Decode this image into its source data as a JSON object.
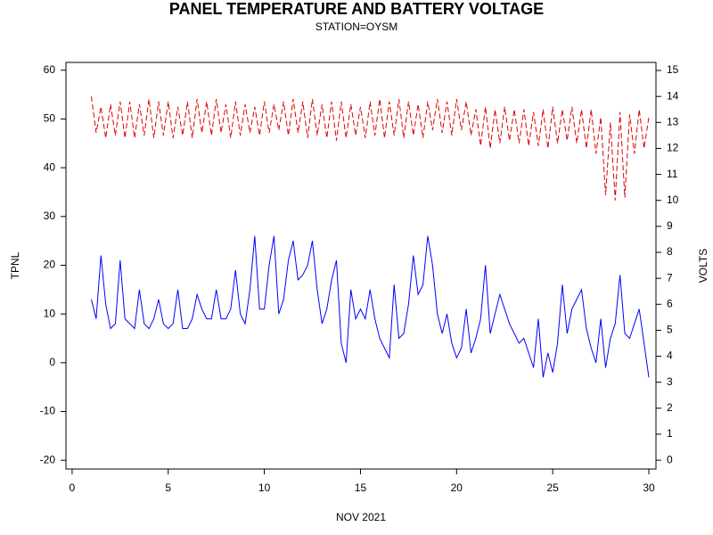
{
  "chart_data": {
    "type": "line",
    "title": "PANEL TEMPERATURE AND BATTERY VOLTAGE",
    "subtitle": "STATION=OYSM",
    "x_label": "NOV 2021",
    "y_label": "TPNL",
    "y2_label": "VOLTS",
    "xlim": [
      -0.32,
      30.37
    ],
    "xticks": [
      0,
      5,
      10,
      15,
      20,
      25,
      30
    ],
    "ylim": [
      -21.8,
      61.6
    ],
    "yticks": [
      -20,
      -10,
      0,
      10,
      20,
      30,
      40,
      50,
      60
    ],
    "y2lim": [
      -0.34,
      15.31
    ],
    "y2ticks": [
      0,
      1,
      2,
      3,
      4,
      5,
      6,
      7,
      8,
      9,
      10,
      11,
      12,
      13,
      14,
      15
    ],
    "grid": false,
    "x": [
      1,
      1.25,
      1.5,
      1.75,
      2,
      2.25,
      2.5,
      2.75,
      3,
      3.25,
      3.5,
      3.75,
      4,
      4.25,
      4.5,
      4.75,
      5,
      5.25,
      5.5,
      5.75,
      6,
      6.25,
      6.5,
      6.75,
      7,
      7.25,
      7.5,
      7.75,
      8,
      8.25,
      8.5,
      8.75,
      9,
      9.25,
      9.5,
      9.75,
      10,
      10.25,
      10.5,
      10.75,
      11,
      11.25,
      11.5,
      11.75,
      12,
      12.25,
      12.5,
      12.75,
      13,
      13.25,
      13.5,
      13.75,
      14,
      14.25,
      14.5,
      14.75,
      15,
      15.25,
      15.5,
      15.75,
      16,
      16.25,
      16.5,
      16.75,
      17,
      17.25,
      17.5,
      17.75,
      18,
      18.25,
      18.5,
      18.75,
      19,
      19.25,
      19.5,
      19.75,
      20,
      20.25,
      20.5,
      20.75,
      21,
      21.25,
      21.5,
      21.75,
      22,
      22.25,
      22.5,
      22.75,
      23,
      23.25,
      23.5,
      23.75,
      24,
      24.25,
      24.5,
      24.75,
      25,
      25.25,
      25.5,
      25.75,
      26,
      26.25,
      26.5,
      26.75,
      27,
      27.25,
      27.5,
      27.75,
      28,
      28.25,
      28.5,
      28.75,
      29,
      29.25,
      29.5,
      29.75,
      30
    ],
    "series": [
      {
        "color": "#0000ff",
        "axis": "y",
        "dashed": false,
        "values": [
          13,
          9,
          22,
          12,
          7,
          8,
          21,
          9,
          8,
          7,
          15,
          8,
          7,
          9,
          13,
          8,
          7,
          8,
          15,
          7,
          7,
          9,
          14,
          11,
          9,
          9,
          15,
          9,
          9,
          11,
          19,
          10,
          8,
          15,
          26,
          11,
          11,
          20,
          26,
          10,
          13,
          21,
          25,
          17,
          18,
          20,
          25,
          15,
          8,
          11,
          17,
          21,
          4,
          0,
          15,
          9,
          11,
          9,
          15,
          9,
          5,
          3,
          1,
          16,
          5,
          6,
          12,
          22,
          14,
          16,
          26,
          20,
          10,
          6,
          10,
          4,
          1,
          3,
          11,
          2,
          5,
          9,
          20,
          6,
          10,
          14,
          11,
          8,
          6,
          4,
          5,
          2,
          -1,
          9,
          -3,
          2,
          -2,
          4,
          16,
          6,
          11,
          13,
          15,
          7,
          3,
          0,
          9,
          -1,
          5,
          8,
          18,
          6,
          5,
          8,
          11,
          4,
          -3
        ]
      },
      {
        "color": "#dd0000",
        "axis": "y2",
        "dashed": true,
        "values": [
          14.0,
          12.6,
          13.6,
          12.4,
          13.7,
          12.5,
          13.8,
          12.4,
          13.8,
          12.4,
          13.7,
          12.5,
          13.9,
          12.4,
          13.8,
          12.5,
          13.8,
          12.4,
          13.6,
          12.5,
          13.8,
          12.4,
          13.9,
          12.6,
          13.8,
          12.5,
          13.9,
          12.6,
          13.7,
          12.4,
          13.8,
          12.5,
          13.7,
          12.6,
          13.6,
          12.5,
          13.8,
          12.6,
          13.7,
          12.7,
          13.8,
          12.5,
          13.9,
          12.6,
          13.8,
          12.4,
          13.9,
          12.5,
          13.7,
          12.4,
          13.8,
          12.3,
          13.8,
          12.4,
          13.7,
          12.5,
          13.6,
          12.4,
          13.8,
          12.5,
          13.9,
          12.4,
          13.8,
          12.5,
          13.9,
          12.4,
          13.8,
          12.5,
          13.7,
          12.4,
          13.8,
          12.7,
          13.9,
          12.6,
          13.8,
          12.5,
          13.9,
          12.7,
          13.8,
          12.5,
          13.5,
          12.1,
          13.6,
          12.0,
          13.5,
          12.2,
          13.6,
          12.3,
          13.5,
          12.2,
          13.5,
          12.1,
          13.4,
          12.1,
          13.5,
          12.0,
          13.6,
          12.2,
          13.5,
          12.3,
          13.6,
          12.2,
          13.5,
          12.0,
          13.5,
          11.8,
          13.2,
          10.2,
          13.0,
          10.0,
          13.4,
          10.1,
          13.3,
          11.8,
          13.5,
          12.0,
          13.2
        ]
      }
    ]
  }
}
